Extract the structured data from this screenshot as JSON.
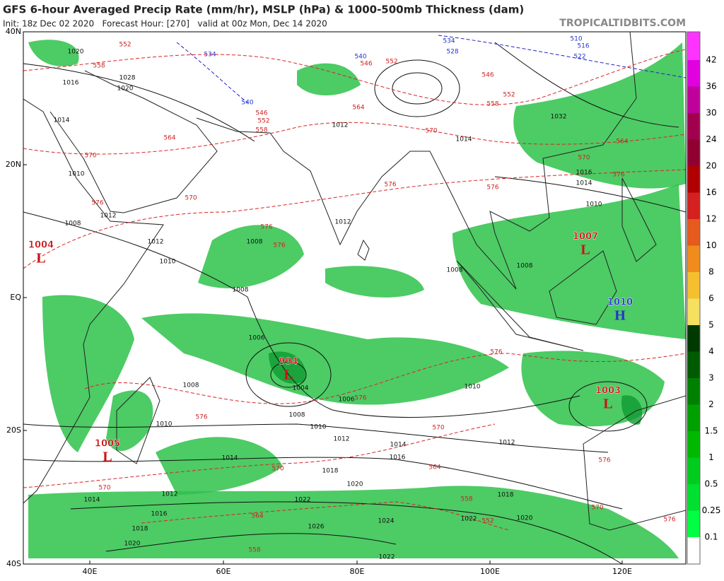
{
  "header": {
    "title": "GFS 6-hour Averaged Precip Rate (mm/hr), MSLP (hPa) & 1000-500mb Thickness (dam)",
    "subtitle": "Init: 18z Dec 02 2020   Forecast Hour: [270]   valid at 00z Mon, Dec 14 2020",
    "site": "TROPICALTIDBITS.COM"
  },
  "map": {
    "lat_labels": [
      "40N",
      "20N",
      "EQ",
      "20S",
      "40S"
    ],
    "lon_labels": [
      "40E",
      "60E",
      "80E",
      "100E",
      "120E"
    ],
    "pressure_centers": [
      {
        "value": "1004",
        "symbol": "L"
      },
      {
        "value": "994",
        "symbol": "L"
      },
      {
        "value": "1007",
        "symbol": "L"
      },
      {
        "value": "1003",
        "symbol": "L"
      },
      {
        "value": "1010",
        "symbol": "H"
      },
      {
        "value": "1005",
        "symbol": "L"
      }
    ],
    "isobar_labels": [
      "1020",
      "1016",
      "1020",
      "1014",
      "1010",
      "1012",
      "1008",
      "1012",
      "1010",
      "1008",
      "1008",
      "1006",
      "1004",
      "1006",
      "1008",
      "1010",
      "1012",
      "1014",
      "1016",
      "1018",
      "1020",
      "1022",
      "1026",
      "1024",
      "1022",
      "1020",
      "1018",
      "1016",
      "1014",
      "1012",
      "1010",
      "1008",
      "1010",
      "1012",
      "1018",
      "1020",
      "1022",
      "1014",
      "1008",
      "1008",
      "1012",
      "1012",
      "1014",
      "1016",
      "1014",
      "1010",
      "1032",
      "1028"
    ],
    "thickness_labels": [
      "552",
      "558",
      "570",
      "576",
      "570",
      "576",
      "576",
      "576",
      "576",
      "576",
      "570",
      "570",
      "564",
      "558",
      "552",
      "564",
      "558",
      "570",
      "576",
      "576",
      "576",
      "576",
      "570",
      "576",
      "564",
      "570",
      "564",
      "558",
      "552",
      "546",
      "564",
      "570",
      "558",
      "552",
      "546",
      "552",
      "546",
      "540",
      "534",
      "540",
      "534",
      "528",
      "522",
      "516",
      "510"
    ]
  },
  "colorbar": {
    "labels": [
      "42",
      "36",
      "30",
      "24",
      "20",
      "16",
      "12",
      "10",
      "8",
      "6",
      "5",
      "4",
      "3",
      "2",
      "1.5",
      "1",
      "0.5",
      "0.25",
      "0.1"
    ],
    "colors": [
      "#ff33ff",
      "#e000e0",
      "#c0009a",
      "#a0004d",
      "#900030",
      "#b00000",
      "#d52020",
      "#e65a1e",
      "#f08c1e",
      "#f5c030",
      "#f5e060",
      "#003a00",
      "#005a00",
      "#008000",
      "#00a000",
      "#00b800",
      "#00cc20",
      "#00e030",
      "#00ff44",
      "#ffffff"
    ]
  }
}
